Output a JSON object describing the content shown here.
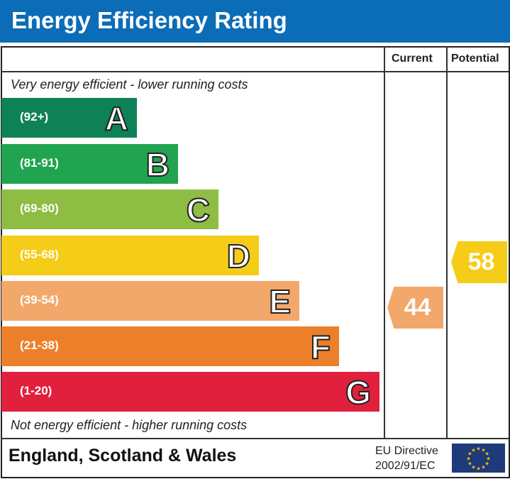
{
  "title": "Energy Efficiency Rating",
  "chart_data": {
    "type": "bar",
    "columns": [
      "Current",
      "Potential"
    ],
    "top_note": "Very energy efficient - lower running costs",
    "bottom_note": "Not energy efficient - higher running costs",
    "bands": [
      {
        "letter": "A",
        "range": "(92+)",
        "color": "#0f8156"
      },
      {
        "letter": "B",
        "range": "(81-91)",
        "color": "#20a44f"
      },
      {
        "letter": "C",
        "range": "(69-80)",
        "color": "#8dbd42"
      },
      {
        "letter": "D",
        "range": "(55-68)",
        "color": "#f5cc18"
      },
      {
        "letter": "E",
        "range": "(39-54)",
        "color": "#f2a86a"
      },
      {
        "letter": "F",
        "range": "(21-38)",
        "color": "#ec7f2a"
      },
      {
        "letter": "G",
        "range": "(1-20)",
        "color": "#e0203d"
      }
    ],
    "current": {
      "value": 44,
      "band": "E",
      "color": "#f2a86a"
    },
    "potential": {
      "value": 58,
      "band": "D",
      "color": "#f5cc18"
    }
  },
  "footer": {
    "region": "England, Scotland & Wales",
    "directive_line1": "EU Directive",
    "directive_line2": "2002/91/EC"
  },
  "icons": {
    "flag": "eu-flag-icon"
  }
}
